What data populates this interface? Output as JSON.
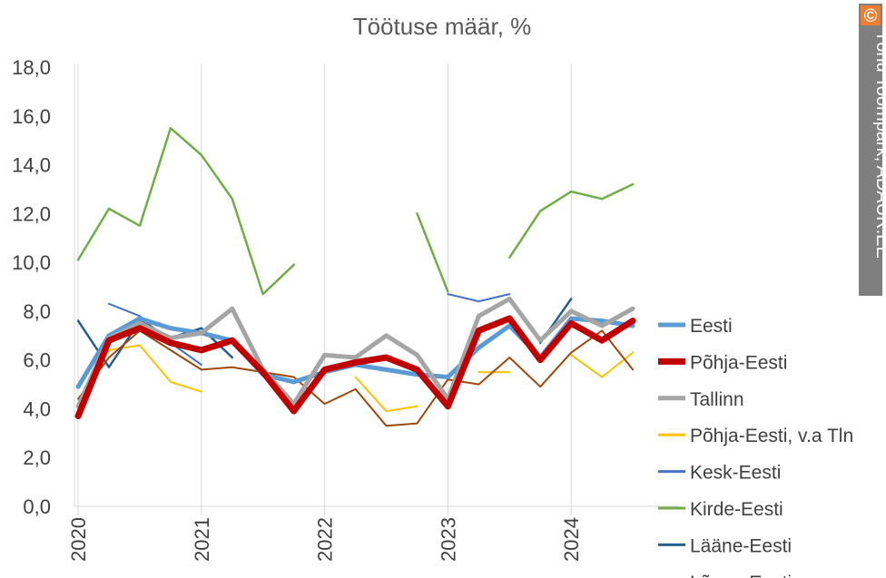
{
  "chart_data": {
    "type": "line",
    "title": "Töötuse määr, %",
    "xlabel": "",
    "ylabel": "",
    "ylim": [
      0,
      18
    ],
    "yticks": [
      "0,0",
      "2,0",
      "4,0",
      "6,0",
      "8,0",
      "10,0",
      "12,0",
      "14,0",
      "16,0",
      "18,0"
    ],
    "ytick_values": [
      0,
      2,
      4,
      6,
      8,
      10,
      12,
      14,
      16,
      18
    ],
    "x_ticks": [
      {
        "label": "2020",
        "x": 2020.0
      },
      {
        "label": "2021",
        "x": 2021.0
      },
      {
        "label": "2022",
        "x": 2022.0
      },
      {
        "label": "2023",
        "x": 2023.0
      },
      {
        "label": "2024",
        "x": 2024.0
      }
    ],
    "xlim": [
      2020.0,
      2024.875
    ],
    "grid": "vertical at years",
    "legend_position": "right",
    "x": [
      2020.0,
      2020.25,
      2020.5,
      2020.75,
      2021.0,
      2021.25,
      2021.5,
      2021.75,
      2022.0,
      2022.25,
      2022.5,
      2022.75,
      2023.0,
      2023.25,
      2023.5,
      2023.75,
      2024.0,
      2024.25,
      2024.5
    ],
    "series": [
      {
        "name": "Eesti",
        "color": "#5b9bd5",
        "width": 5,
        "values": [
          4.9,
          7.0,
          7.7,
          7.3,
          7.1,
          6.8,
          5.4,
          5.1,
          5.5,
          5.8,
          5.6,
          5.4,
          5.3,
          6.5,
          7.4,
          6.1,
          7.7,
          7.6,
          7.4
        ]
      },
      {
        "name": "Põhja-Eesti",
        "color": "#c00000",
        "width": 7,
        "values": [
          3.7,
          6.8,
          7.3,
          6.7,
          6.4,
          6.8,
          5.5,
          3.9,
          5.6,
          5.9,
          6.1,
          5.6,
          4.1,
          7.2,
          7.7,
          6.0,
          7.5,
          6.8,
          7.6
        ]
      },
      {
        "name": "Tallinn",
        "color": "#a5a5a5",
        "width": 5,
        "values": [
          4.1,
          6.9,
          7.5,
          6.9,
          7.1,
          8.1,
          5.6,
          4.2,
          6.2,
          6.1,
          7.0,
          6.2,
          4.4,
          7.8,
          8.5,
          6.8,
          8.0,
          7.4,
          8.1
        ]
      },
      {
        "name": "Põhja-Eesti, v.a Tln",
        "color": "#ffc000",
        "width": 2,
        "values": [
          4.1,
          6.4,
          6.6,
          5.1,
          4.7,
          null,
          null,
          null,
          null,
          5.3,
          3.9,
          4.1,
          null,
          5.5,
          5.5,
          null,
          6.2,
          5.3,
          6.3
        ]
      },
      {
        "name": "Kesk-Eesti",
        "color": "#4472c4",
        "width": 2,
        "values": [
          null,
          8.3,
          7.8,
          6.7,
          5.8,
          null,
          null,
          null,
          null,
          null,
          null,
          null,
          8.7,
          8.4,
          8.7,
          null,
          null,
          null,
          null
        ]
      },
      {
        "name": "Kirde-Eesti",
        "color": "#70ad47",
        "width": 2.5,
        "values": [
          10.1,
          12.2,
          11.5,
          15.5,
          14.4,
          12.6,
          8.7,
          9.9,
          null,
          null,
          null,
          12.0,
          8.8,
          null,
          10.2,
          12.1,
          12.9,
          12.6,
          13.2
        ]
      },
      {
        "name": "Lääne-Eesti",
        "color": "#255e91",
        "width": 2.5,
        "values": [
          7.6,
          5.7,
          7.6,
          6.9,
          7.3,
          6.1,
          null,
          null,
          null,
          null,
          null,
          null,
          null,
          null,
          null,
          6.7,
          8.5,
          null,
          null
        ]
      },
      {
        "name": "Lõuna-Eesti",
        "color": "#9e480e",
        "width": 2,
        "values": [
          4.4,
          6.1,
          7.2,
          6.4,
          5.6,
          5.7,
          5.5,
          5.3,
          4.2,
          4.8,
          3.3,
          3.4,
          5.2,
          5.0,
          6.1,
          4.9,
          6.3,
          7.2,
          5.6
        ]
      }
    ]
  },
  "watermark": {
    "symbol": "©",
    "text": "Tõnu Toompark, ADAUR.EE",
    "bg_color": "#7f7f7f",
    "symbol_bg": "#ed7d31"
  }
}
